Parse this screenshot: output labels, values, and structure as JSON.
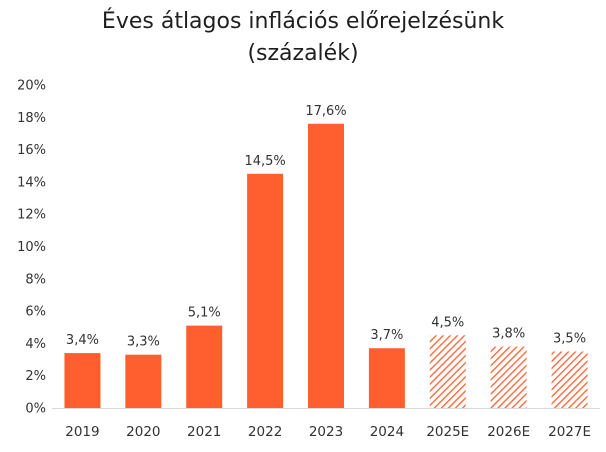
{
  "chart_data": {
    "type": "bar",
    "title": "Éves átlagos inflációs előrejelzésünk",
    "subtitle": "(százalék)",
    "categories": [
      "2019",
      "2020",
      "2021",
      "2022",
      "2023",
      "2024",
      "2025E",
      "2026E",
      "2027E"
    ],
    "values": [
      3.4,
      3.3,
      5.1,
      14.5,
      17.6,
      3.7,
      4.5,
      3.8,
      3.5
    ],
    "data_labels": [
      "3,4%",
      "3,3%",
      "5,1%",
      "14,5%",
      "17,6%",
      "3,7%",
      "4,5%",
      "3,8%",
      "3,5%"
    ],
    "forecast": [
      false,
      false,
      false,
      false,
      false,
      false,
      true,
      true,
      true
    ],
    "ylim": [
      0,
      20
    ],
    "yticks": [
      0,
      2,
      4,
      6,
      8,
      10,
      12,
      14,
      16,
      18,
      20
    ],
    "ytick_labels": [
      "0%",
      "2%",
      "4%",
      "6%",
      "8%",
      "10%",
      "12%",
      "14%",
      "16%",
      "18%",
      "20%"
    ],
    "xlabel": "",
    "ylabel": "",
    "grid": false,
    "legend": "none",
    "colors": {
      "bar": "#ff5f2e",
      "forecast_hatch": "#ff5f2e",
      "axis": "#d9d9d9"
    }
  }
}
